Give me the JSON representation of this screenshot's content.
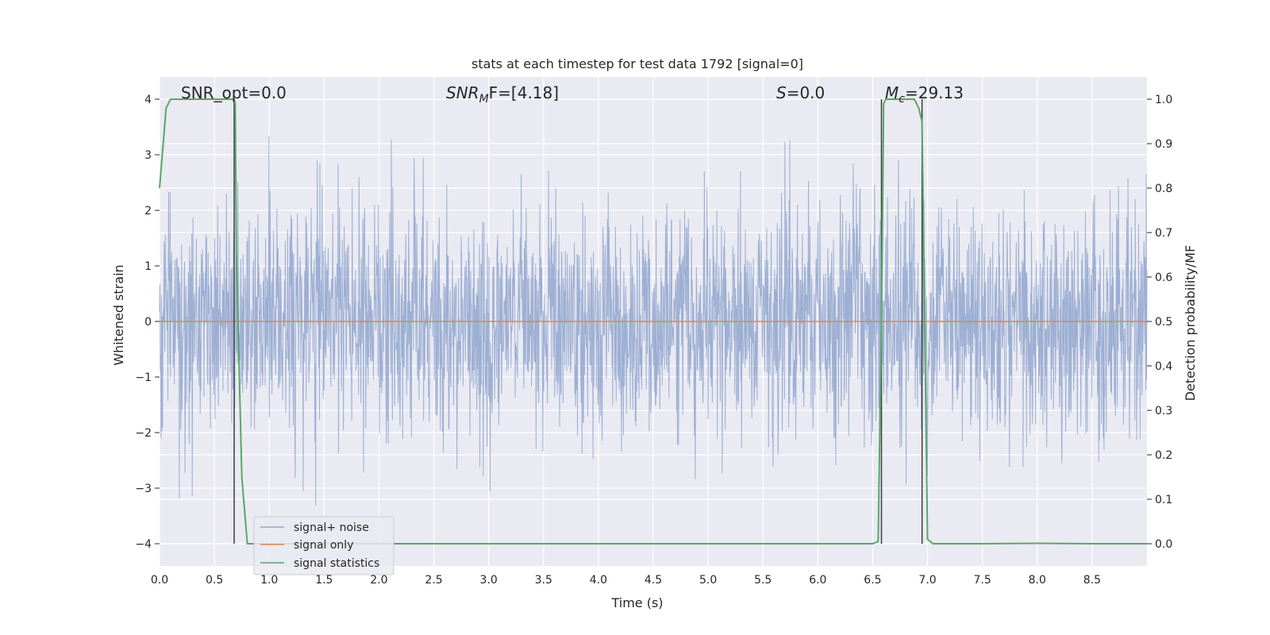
{
  "chart_data": {
    "type": "line",
    "title": "stats at each timestep for test data 1792 [signal=0]",
    "xlabel": "Time (s)",
    "ylabel_left": "Whitened strain",
    "ylabel_right": "Detection probability/MF",
    "xlim": [
      0.0,
      9.0
    ],
    "ylim_left": [
      -4.4,
      4.4
    ],
    "ylim_right": [
      -0.05,
      1.05
    ],
    "x_ticks": [
      "0.0",
      "0.5",
      "1.0",
      "1.5",
      "2.0",
      "2.5",
      "3.0",
      "3.5",
      "4.0",
      "4.5",
      "5.0",
      "5.5",
      "6.0",
      "6.5",
      "7.0",
      "7.5",
      "8.0",
      "8.5"
    ],
    "x_tick_values": [
      0,
      0.5,
      1,
      1.5,
      2,
      2.5,
      3,
      3.5,
      4,
      4.5,
      5,
      5.5,
      6,
      6.5,
      7,
      7.5,
      8,
      8.5
    ],
    "y_left_ticks": [
      "−4",
      "−3",
      "−2",
      "−1",
      "0",
      "1",
      "2",
      "3",
      "4"
    ],
    "y_left_tick_values": [
      -4,
      -3,
      -2,
      -1,
      0,
      1,
      2,
      3,
      4
    ],
    "y_right_ticks": [
      "0.0",
      "0.1",
      "0.2",
      "0.3",
      "0.4",
      "0.5",
      "0.6",
      "0.7",
      "0.8",
      "0.9",
      "1.0"
    ],
    "y_right_tick_values": [
      0,
      0.1,
      0.2,
      0.3,
      0.4,
      0.5,
      0.6,
      0.7,
      0.8,
      0.9,
      1.0
    ],
    "grid": true,
    "legend_position": "bottom-left",
    "annotations": {
      "snr_opt": "SNR_opt=0.0",
      "snr_mf_base": "SNR",
      "snr_mf_sub": "M",
      "snr_mf_rest": "F=[4.18]",
      "s_italic": "S",
      "s_rest": "=0.0",
      "mc_base": "M",
      "mc_sub": "c",
      "mc_rest": "=29.13"
    },
    "series": [
      {
        "name": "signal+ noise",
        "color": "#8fa4ce",
        "style": "whitened strain noise, amplitude about ±1.5, peaks to ±4"
      },
      {
        "name": "signal only",
        "color": "#dd8452",
        "values_constant": 0.0
      },
      {
        "name": "signal statistics",
        "color": "#55a868",
        "axis": "right",
        "x": [
          0.0,
          0.06,
          0.1,
          0.2,
          0.5,
          0.68,
          0.69,
          0.7,
          0.75,
          0.8,
          1.0,
          2.0,
          3.0,
          4.0,
          5.0,
          6.0,
          6.5,
          6.55,
          6.58,
          6.6,
          6.62,
          6.7,
          6.8,
          6.88,
          6.92,
          6.95,
          7.0,
          7.05,
          7.5,
          8.0,
          8.5,
          9.0
        ],
        "values": [
          0.8,
          0.98,
          1.0,
          1.0,
          1.0,
          1.0,
          0.99,
          0.65,
          0.15,
          0.0,
          0.0,
          0.0,
          0.0,
          0.0,
          0.0,
          0.0,
          0.0,
          0.005,
          0.5,
          0.99,
          1.0,
          1.0,
          1.0,
          1.0,
          0.98,
          0.95,
          0.01,
          0.0,
          0.0,
          0.001,
          0.0,
          0.0
        ]
      }
    ],
    "vertical_lines": [
      0.68,
      6.58,
      6.95
    ]
  },
  "colors": {
    "plot_bg": "#eaeaf2",
    "grid": "#ffffff",
    "noise": "#8fa4ce",
    "signal": "#dd8452",
    "stats": "#55a868",
    "vline": "#3c3c3c"
  }
}
